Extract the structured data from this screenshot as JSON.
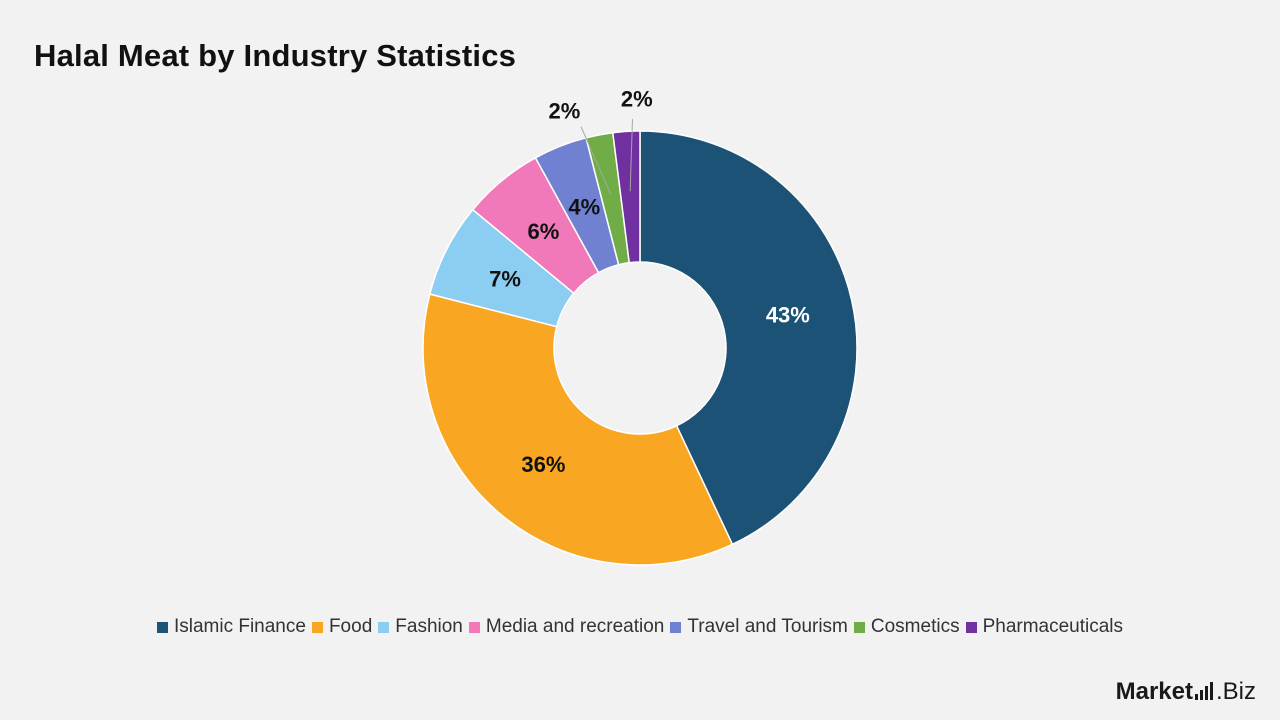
{
  "title": "Halal Meat by Industry Statistics",
  "brand": {
    "name": "Market",
    "suffix": ".Biz"
  },
  "chart_data": {
    "type": "pie",
    "donut": true,
    "title": "Halal Meat by Industry Statistics",
    "legend_position": "bottom",
    "categories": [
      "Islamic Finance",
      "Food",
      "Fashion",
      "Media and recreation",
      "Travel and Tourism",
      "Cosmetics",
      "Pharmaceuticals"
    ],
    "values": [
      43,
      36,
      7,
      6,
      4,
      2,
      2
    ],
    "labels": [
      "43%",
      "36%",
      "7%",
      "6%",
      "4%",
      "2%",
      "2%"
    ],
    "colors": [
      "#1b5276",
      "#f9a623",
      "#8ccdf2",
      "#f279b9",
      "#7181d2",
      "#70ad47",
      "#7030a0"
    ],
    "label_colors": [
      "#ffffff",
      "#111111",
      "#111111",
      "#111111",
      "#111111",
      "#111111",
      "#111111"
    ]
  }
}
